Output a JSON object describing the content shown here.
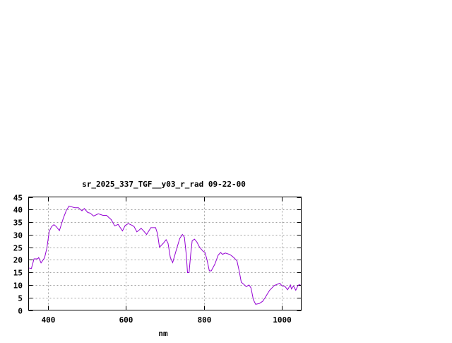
{
  "chart_data": {
    "type": "line",
    "title": "sr_2025_337_TGF__y03_r_rad 09-22-00",
    "xlabel": "nm",
    "ylabel": "",
    "xlim": [
      350,
      1050
    ],
    "ylim": [
      0,
      45
    ],
    "xticks": [
      400,
      600,
      800,
      1000
    ],
    "yticks": [
      0,
      5,
      10,
      15,
      20,
      25,
      30,
      35,
      40,
      45
    ],
    "grid": true,
    "legend": "none",
    "line_color": "#9400d3",
    "series": [
      {
        "x": [
          350,
          357,
          364,
          373,
          376,
          382,
          391,
          397,
          403,
          409,
          415,
          421,
          429,
          439,
          447,
          454,
          460,
          469,
          478,
          487,
          493,
          502,
          508,
          517,
          529,
          541,
          550,
          562,
          571,
          580,
          591,
          598,
          606,
          616,
          621,
          628,
          639,
          646,
          653,
          664,
          676,
          681,
          686,
          696,
          703,
          708,
          714,
          720,
          729,
          738,
          745,
          750,
          755,
          758,
          762,
          766,
          770,
          776,
          782,
          789,
          798,
          803,
          808,
          814,
          819,
          828,
          837,
          843,
          848,
          855,
          867,
          876,
          885,
          891,
          896,
          903,
          909,
          916,
          921,
          927,
          933,
          942,
          951,
          957,
          969,
          981,
          995,
          1000,
          1009,
          1015,
          1022,
          1025,
          1030,
          1036,
          1042,
          1048
        ],
        "y": [
          16.8,
          16.5,
          20.4,
          20.4,
          20.9,
          18.8,
          20.8,
          24.7,
          31.3,
          33.2,
          34.0,
          33.2,
          31.6,
          36.5,
          39.7,
          41.4,
          41.1,
          40.7,
          40.7,
          39.5,
          40.4,
          38.8,
          38.6,
          37.4,
          38.3,
          37.7,
          37.7,
          36.0,
          33.5,
          34.1,
          31.5,
          33.7,
          34.4,
          33.7,
          33.2,
          31.1,
          32.5,
          31.4,
          30.1,
          32.8,
          32.8,
          30.4,
          25.0,
          26.6,
          28.0,
          26.6,
          20.9,
          18.9,
          23.8,
          28.5,
          30.1,
          29.0,
          21.9,
          14.9,
          14.9,
          21.9,
          27.6,
          28.2,
          27.1,
          25.0,
          23.4,
          22.9,
          20.0,
          15.6,
          15.6,
          18.2,
          21.9,
          22.9,
          22.2,
          22.7,
          22.1,
          21.0,
          19.6,
          15.4,
          11.1,
          10.2,
          9.3,
          10.0,
          8.8,
          4.2,
          2.3,
          2.6,
          3.5,
          4.9,
          7.9,
          9.8,
          10.7,
          9.8,
          9.3,
          8.1,
          10.0,
          8.4,
          9.6,
          7.9,
          9.9,
          10.2
        ]
      }
    ]
  }
}
